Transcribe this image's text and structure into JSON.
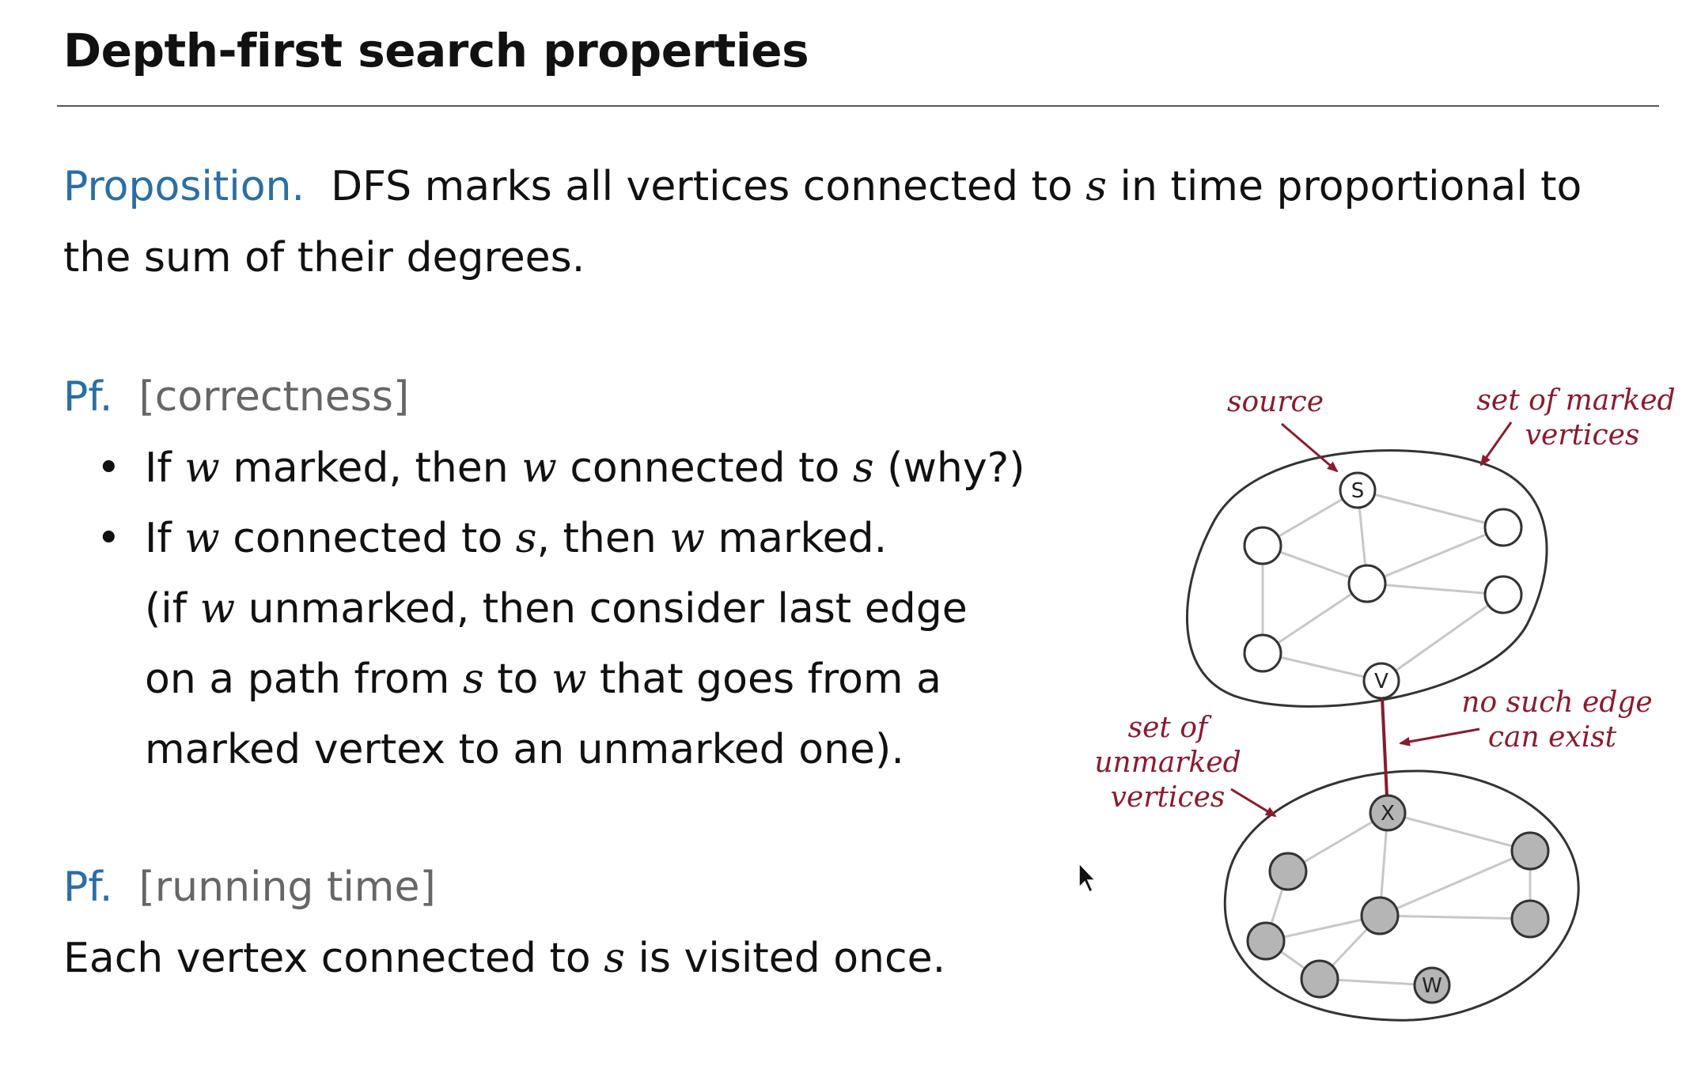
{
  "slide": {
    "title": "Depth-first search properties"
  },
  "proposition": {
    "label": "Proposition.",
    "text_1": "DFS marks all vertices connected to",
    "var_s": "s",
    "text_2": "in time proportional to",
    "line2": "the sum of their degrees."
  },
  "proof_correctness": {
    "label": "Pf.",
    "tag": "[correctness]",
    "bullet_1": {
      "if": "If",
      "w1": "w",
      "mid": "marked, then",
      "w2": "w",
      "conn": "connected to",
      "s": "s",
      "end": "(why?)"
    },
    "bullet_2": {
      "if": "If",
      "w1": "w",
      "conn": "connected to",
      "s": "s",
      "mid": ", then",
      "w2": "w",
      "end": "marked."
    },
    "para_1": {
      "a": "(if",
      "w": "w",
      "b": "unmarked, then consider last edge"
    },
    "para_2": {
      "a": "on a path from",
      "s": "s",
      "b": "to",
      "w": "w",
      "c": "that goes from a"
    },
    "para_3": "marked vertex to an unmarked one)."
  },
  "proof_running_time": {
    "label": "Pf.",
    "tag": "[running time]",
    "text_1": "Each vertex connected to",
    "s": "s",
    "text_2": "is visited once."
  },
  "diagram": {
    "annotations": {
      "source": "source",
      "marked_line1": "set of marked",
      "marked_line2": "vertices",
      "unmarked_line1": "set of",
      "unmarked_line2": "unmarked",
      "unmarked_line3": "vertices",
      "no_edge_line1": "no such edge",
      "no_edge_line2": "can exist"
    },
    "vertex_labels": {
      "s": "S",
      "v": "V",
      "x": "X",
      "w": "W"
    },
    "colors": {
      "annotation": "#8b1a2e",
      "unmarked_fill": "#b5b5b5",
      "edge": "#c8c8c8"
    }
  }
}
